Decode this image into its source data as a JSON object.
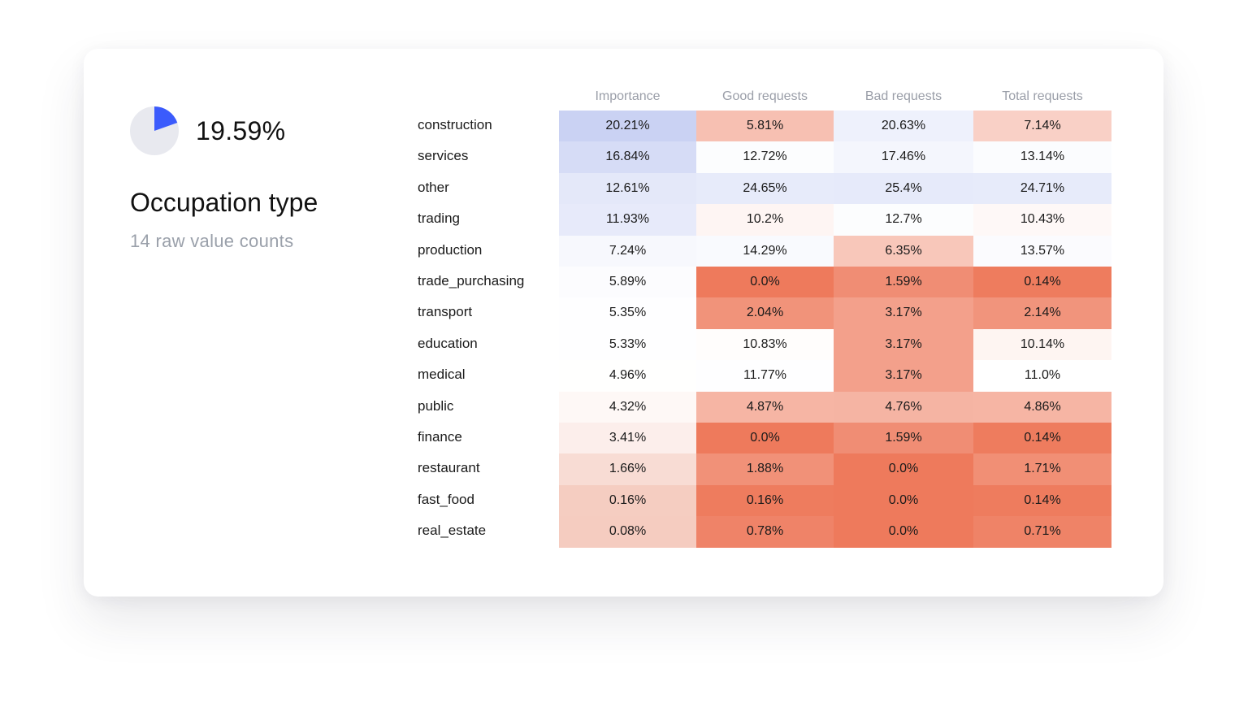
{
  "summary": {
    "percentage": "19.59%",
    "pie_fraction": 0.1959,
    "title": "Occupation type",
    "subtitle": "14 raw value counts"
  },
  "colors": {
    "pie_fill": "#3b5bfc",
    "pie_bg": "#e8e9ef",
    "low": "#ee7a5c",
    "high_importance": "#c9d1f3",
    "high_other": "#e6eafa"
  },
  "chart_data": {
    "type": "heatmap",
    "columns": [
      "Importance",
      "Good requests",
      "Bad requests",
      "Total requests"
    ],
    "rows": [
      {
        "label": "construction",
        "values": [
          "20.21%",
          "5.81%",
          "20.63%",
          "7.14%"
        ]
      },
      {
        "label": "services",
        "values": [
          "16.84%",
          "12.72%",
          "17.46%",
          "13.14%"
        ]
      },
      {
        "label": "other",
        "values": [
          "12.61%",
          "24.65%",
          "25.4%",
          "24.71%"
        ]
      },
      {
        "label": "trading",
        "values": [
          "11.93%",
          "10.2%",
          "12.7%",
          "10.43%"
        ]
      },
      {
        "label": "production",
        "values": [
          "7.24%",
          "14.29%",
          "6.35%",
          "13.57%"
        ]
      },
      {
        "label": "trade_purchasing",
        "values": [
          "5.89%",
          "0.0%",
          "1.59%",
          "0.14%"
        ]
      },
      {
        "label": "transport",
        "values": [
          "5.35%",
          "2.04%",
          "3.17%",
          "2.14%"
        ]
      },
      {
        "label": "education",
        "values": [
          "5.33%",
          "10.83%",
          "3.17%",
          "10.14%"
        ]
      },
      {
        "label": "medical",
        "values": [
          "4.96%",
          "11.77%",
          "3.17%",
          "11.0%"
        ]
      },
      {
        "label": "public",
        "values": [
          "4.32%",
          "4.87%",
          "4.76%",
          "4.86%"
        ]
      },
      {
        "label": "finance",
        "values": [
          "3.41%",
          "0.0%",
          "1.59%",
          "0.14%"
        ]
      },
      {
        "label": "restaurant",
        "values": [
          "1.66%",
          "1.88%",
          "0.0%",
          "1.71%"
        ]
      },
      {
        "label": "fast_food",
        "values": [
          "0.16%",
          "0.16%",
          "0.0%",
          "0.14%"
        ]
      },
      {
        "label": "real_estate",
        "values": [
          "0.08%",
          "0.78%",
          "0.0%",
          "0.71%"
        ]
      }
    ]
  }
}
